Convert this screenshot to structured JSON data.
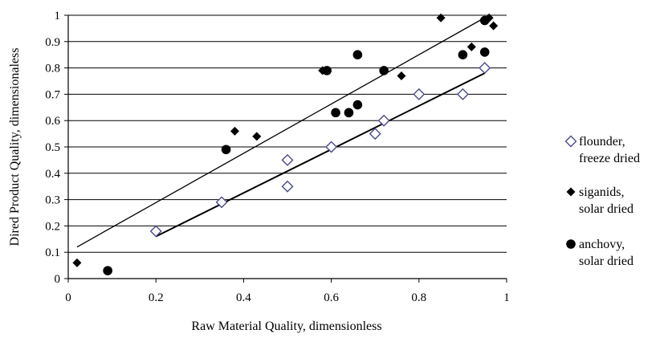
{
  "chart_data": {
    "type": "scatter",
    "xlabel": "Raw Material Quality, dimensionless",
    "ylabel": "Dired Product Quality, dimensionaless",
    "xlim": [
      0,
      1
    ],
    "ylim": [
      0,
      1
    ],
    "x_ticks": [
      "0",
      "0.2",
      "0.4",
      "0.6",
      "0.8",
      "1"
    ],
    "y_ticks": [
      "0",
      "0.1",
      "0.2",
      "0.3",
      "0.4",
      "0.5",
      "0.6",
      "0.7",
      "0.8",
      "0.9",
      "1"
    ],
    "grid": "horizontal",
    "legend_position": "right",
    "series": [
      {
        "name_lines": [
          "flounder,",
          "freeze dried"
        ],
        "marker": "open-diamond",
        "color": "#4a4a8c",
        "points": [
          [
            0.2,
            0.18
          ],
          [
            0.35,
            0.29
          ],
          [
            0.5,
            0.45
          ],
          [
            0.5,
            0.35
          ],
          [
            0.6,
            0.5
          ],
          [
            0.7,
            0.55
          ],
          [
            0.72,
            0.6
          ],
          [
            0.8,
            0.7
          ],
          [
            0.9,
            0.7
          ],
          [
            0.95,
            0.8
          ]
        ],
        "trendline": [
          [
            0.2,
            0.16
          ],
          [
            0.95,
            0.78
          ]
        ]
      },
      {
        "name_lines": [
          "siganids,",
          "solar dried"
        ],
        "marker": "filled-diamond",
        "color": "#000000",
        "points": [
          [
            0.02,
            0.06
          ],
          [
            0.38,
            0.56
          ],
          [
            0.43,
            0.54
          ],
          [
            0.58,
            0.79
          ],
          [
            0.76,
            0.77
          ],
          [
            0.85,
            0.99
          ],
          [
            0.92,
            0.88
          ],
          [
            0.96,
            0.99
          ],
          [
            0.97,
            0.96
          ]
        ]
      },
      {
        "name_lines": [
          "anchovy,",
          "solar dried"
        ],
        "marker": "filled-circle",
        "color": "#000000",
        "points": [
          [
            0.09,
            0.03
          ],
          [
            0.36,
            0.49
          ],
          [
            0.59,
            0.79
          ],
          [
            0.61,
            0.63
          ],
          [
            0.64,
            0.63
          ],
          [
            0.66,
            0.66
          ],
          [
            0.66,
            0.85
          ],
          [
            0.72,
            0.79
          ],
          [
            0.9,
            0.85
          ],
          [
            0.95,
            0.86
          ],
          [
            0.95,
            0.98
          ]
        ],
        "trendline": [
          [
            0.02,
            0.12
          ],
          [
            0.96,
            1.0
          ]
        ]
      }
    ]
  }
}
